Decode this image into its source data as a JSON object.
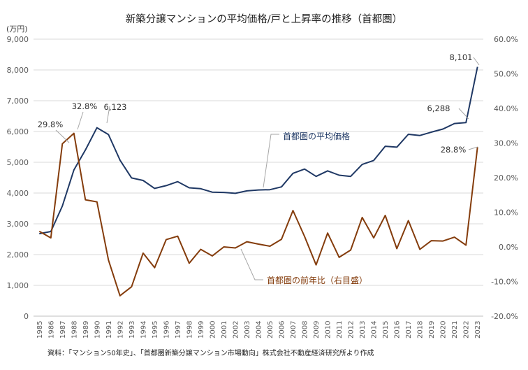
{
  "chart_data": {
    "type": "line",
    "title": "新築分譲マンションの平均価格/戸と上昇率の推移（首都圏）",
    "y_unit_label": "(万円)",
    "x": [
      "1985",
      "1986",
      "1987",
      "1988",
      "1989",
      "1990",
      "1991",
      "1992",
      "1993",
      "1994",
      "1995",
      "1996",
      "1997",
      "1998",
      "1999",
      "2000",
      "2001",
      "2002",
      "2003",
      "2004",
      "2005",
      "2006",
      "2007",
      "2008",
      "2009",
      "2010",
      "2011",
      "2012",
      "2013",
      "2014",
      "2015",
      "2016",
      "2017",
      "2018",
      "2019",
      "2020",
      "2021",
      "2022",
      "2023"
    ],
    "ylim_left": [
      0,
      9000
    ],
    "ylim_right": [
      -20,
      60
    ],
    "yticks_left": [
      "0",
      "1,000",
      "2,000",
      "3,000",
      "4,000",
      "5,000",
      "6,000",
      "7,000",
      "8,000",
      "9,000"
    ],
    "yticks_right": [
      "-20.0%",
      "-10.0%",
      "0.0%",
      "10.0%",
      "20.0%",
      "30.0%",
      "40.0%",
      "50.0%",
      "60.0%"
    ],
    "grid": true,
    "series": [
      {
        "name": "首都圏の平均価格",
        "axis": "left",
        "color": "#1f3864",
        "values": [
          2680,
          2750,
          3580,
          4750,
          5400,
          6123,
          5900,
          5070,
          4490,
          4410,
          4150,
          4240,
          4370,
          4170,
          4140,
          4030,
          4020,
          3990,
          4070,
          4100,
          4110,
          4200,
          4640,
          4780,
          4540,
          4720,
          4580,
          4540,
          4930,
          5060,
          5520,
          5490,
          5910,
          5870,
          5980,
          6080,
          6260,
          6288,
          8101
        ]
      },
      {
        "name": "首都圏の前年比（右目盛）",
        "axis": "right",
        "color": "#843c0c",
        "values": [
          4.5,
          2.6,
          29.8,
          32.8,
          13.6,
          13.0,
          -3.8,
          -14.1,
          -11.5,
          -1.8,
          -6.0,
          2.1,
          3.1,
          -4.7,
          -0.7,
          -2.6,
          0.0,
          -0.3,
          1.5,
          0.8,
          0.2,
          2.2,
          10.5,
          3.0,
          -5.2,
          4.0,
          -3.0,
          -0.9,
          8.5,
          2.6,
          9.1,
          -0.5,
          7.6,
          -0.7,
          1.8,
          1.7,
          2.8,
          0.5,
          28.8
        ]
      }
    ],
    "annotations": [
      {
        "text": "29.8%",
        "series": 1,
        "index": 2
      },
      {
        "text": "32.8%",
        "series": 1,
        "index": 3
      },
      {
        "text": "6,123",
        "series": 0,
        "index": 5
      },
      {
        "text": "6,288",
        "series": 0,
        "index": 37
      },
      {
        "text": "8,101",
        "series": 0,
        "index": 38
      },
      {
        "text": "28.8%",
        "series": 1,
        "index": 38
      }
    ],
    "source": "資料：「マンション50年史」、「首都圏新築分譲マンション市場動向」株式会社不動産経済研究所より作成"
  }
}
